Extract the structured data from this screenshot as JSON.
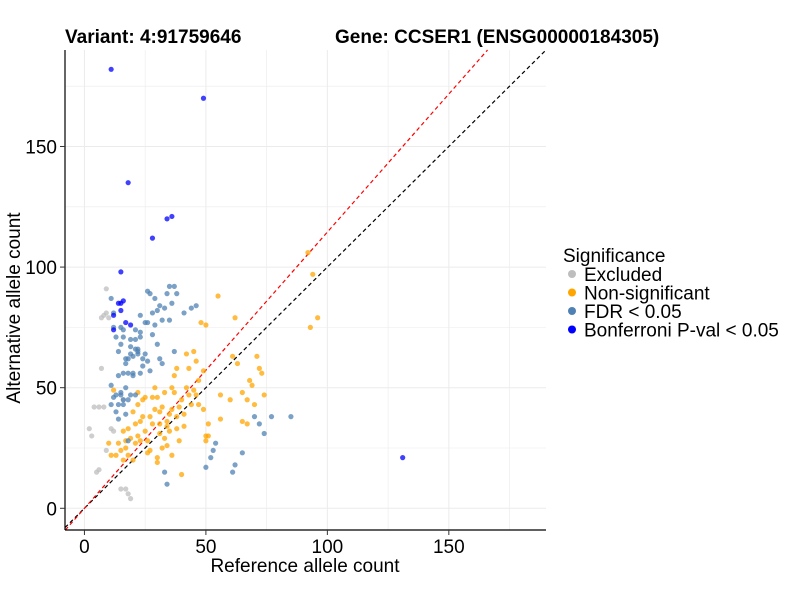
{
  "chart_data": {
    "type": "scatter",
    "title_left": "Variant: 4:91759646",
    "title_right": "Gene: CCSER1 (ENSG00000184305)",
    "xlabel": "Reference allele count",
    "ylabel": "Alternative allele count",
    "xlim": [
      -8,
      190
    ],
    "ylim": [
      -9,
      190
    ],
    "xticks": [
      0,
      50,
      100,
      150
    ],
    "yticks": [
      0,
      50,
      100,
      150
    ],
    "grid": true,
    "legend_position": "right",
    "legend_title": "Significance",
    "reference_lines": [
      {
        "name": "y = x",
        "slope": 1.0,
        "color": "#000000",
        "dash": true
      },
      {
        "name": "alt-ratio",
        "slope": 1.145,
        "color": "#ff0000",
        "dash": true
      }
    ],
    "series": [
      {
        "name": "Excluded",
        "color": "#bebebe",
        "points": [
          [
            2,
            33
          ],
          [
            3,
            30
          ],
          [
            4,
            42
          ],
          [
            5,
            15
          ],
          [
            6,
            16
          ],
          [
            6,
            42
          ],
          [
            7,
            79
          ],
          [
            8,
            80
          ],
          [
            7,
            58
          ],
          [
            8,
            42
          ],
          [
            9,
            91
          ],
          [
            9,
            24
          ],
          [
            9,
            81
          ],
          [
            10,
            79
          ],
          [
            11,
            33
          ],
          [
            12,
            32
          ],
          [
            15,
            8
          ],
          [
            16,
            45
          ],
          [
            17,
            8
          ],
          [
            18,
            6
          ],
          [
            19,
            4
          ]
        ]
      },
      {
        "name": "Non-significant",
        "color": "#ffa500",
        "points": [
          [
            10,
            27
          ],
          [
            11,
            22
          ],
          [
            12,
            49
          ],
          [
            13,
            22
          ],
          [
            14,
            27
          ],
          [
            15,
            24
          ],
          [
            16,
            20
          ],
          [
            16,
            32
          ],
          [
            17,
            28
          ],
          [
            17,
            25
          ],
          [
            18,
            22
          ],
          [
            18,
            33
          ],
          [
            19,
            29
          ],
          [
            20,
            20
          ],
          [
            20,
            40
          ],
          [
            21,
            27
          ],
          [
            21,
            35
          ],
          [
            22,
            43
          ],
          [
            22,
            48
          ],
          [
            22,
            30
          ],
          [
            23,
            28
          ],
          [
            23,
            36
          ],
          [
            24,
            45
          ],
          [
            24,
            38
          ],
          [
            25,
            46
          ],
          [
            25,
            32
          ],
          [
            26,
            23
          ],
          [
            26,
            28
          ],
          [
            27,
            38
          ],
          [
            27,
            24
          ],
          [
            28,
            46
          ],
          [
            28,
            35
          ],
          [
            29,
            50
          ],
          [
            29,
            41
          ],
          [
            30,
            46
          ],
          [
            30,
            21
          ],
          [
            30,
            19
          ],
          [
            31,
            31
          ],
          [
            31,
            35
          ],
          [
            31,
            40
          ],
          [
            32,
            42
          ],
          [
            32,
            25
          ],
          [
            33,
            29
          ],
          [
            33,
            48
          ],
          [
            34,
            26
          ],
          [
            34,
            34
          ],
          [
            34,
            36
          ],
          [
            35,
            39
          ],
          [
            35,
            32
          ],
          [
            36,
            50
          ],
          [
            36,
            41
          ],
          [
            36,
            22
          ],
          [
            37,
            55
          ],
          [
            37,
            48
          ],
          [
            38,
            58
          ],
          [
            38,
            38
          ],
          [
            38,
            33
          ],
          [
            39,
            42
          ],
          [
            39,
            28
          ],
          [
            40,
            14
          ],
          [
            40,
            45
          ],
          [
            41,
            34
          ],
          [
            41,
            39
          ],
          [
            42,
            50
          ],
          [
            42,
            64
          ],
          [
            43,
            47
          ],
          [
            43,
            58
          ],
          [
            44,
            43
          ],
          [
            45,
            65
          ],
          [
            45,
            49
          ],
          [
            46,
            61
          ],
          [
            46,
            47
          ],
          [
            47,
            53
          ],
          [
            47,
            43
          ],
          [
            48,
            77
          ],
          [
            49,
            57
          ],
          [
            49,
            41
          ],
          [
            50,
            76
          ],
          [
            50,
            28
          ],
          [
            50,
            30
          ],
          [
            51,
            30
          ],
          [
            51,
            35
          ],
          [
            55,
            88
          ],
          [
            56,
            47
          ],
          [
            56,
            37
          ],
          [
            60,
            45
          ],
          [
            61,
            63
          ],
          [
            62,
            79
          ],
          [
            63,
            60
          ],
          [
            65,
            48
          ],
          [
            65,
            36
          ],
          [
            67,
            35
          ],
          [
            67,
            45
          ],
          [
            68,
            53
          ],
          [
            69,
            51
          ],
          [
            70,
            43
          ],
          [
            71,
            63
          ],
          [
            72,
            58
          ],
          [
            73,
            56
          ],
          [
            74,
            47
          ],
          [
            93,
            75
          ],
          [
            94,
            97
          ],
          [
            96,
            79
          ],
          [
            92,
            106
          ]
        ]
      },
      {
        "name": "FDR < 0.05",
        "color": "#4f81b4",
        "points": [
          [
            11,
            51
          ],
          [
            11,
            87
          ],
          [
            11,
            43
          ],
          [
            12,
            81
          ],
          [
            12,
            75
          ],
          [
            12,
            46
          ],
          [
            13,
            71
          ],
          [
            13,
            47
          ],
          [
            13,
            40
          ],
          [
            14,
            65
          ],
          [
            14,
            55
          ],
          [
            14,
            43
          ],
          [
            14,
            37
          ],
          [
            15,
            75
          ],
          [
            15,
            68
          ],
          [
            15,
            47
          ],
          [
            15,
            48
          ],
          [
            16,
            74
          ],
          [
            16,
            71
          ],
          [
            16,
            56
          ],
          [
            16,
            45
          ],
          [
            16,
            43
          ],
          [
            17,
            60
          ],
          [
            17,
            62
          ],
          [
            17,
            50
          ],
          [
            17,
            39
          ],
          [
            18,
            62
          ],
          [
            18,
            56
          ],
          [
            18,
            45
          ],
          [
            18,
            28
          ],
          [
            19,
            70
          ],
          [
            19,
            67
          ],
          [
            19,
            64
          ],
          [
            19,
            47
          ],
          [
            20,
            63
          ],
          [
            20,
            56
          ],
          [
            20,
            55
          ],
          [
            21,
            70
          ],
          [
            21,
            74
          ],
          [
            21,
            66
          ],
          [
            21,
            47
          ],
          [
            22,
            66
          ],
          [
            22,
            65
          ],
          [
            22,
            64
          ],
          [
            23,
            71
          ],
          [
            23,
            80
          ],
          [
            23,
            73
          ],
          [
            23,
            56
          ],
          [
            24,
            62
          ],
          [
            24,
            59
          ],
          [
            25,
            77
          ],
          [
            25,
            64
          ],
          [
            26,
            90
          ],
          [
            26,
            77
          ],
          [
            26,
            61
          ],
          [
            27,
            89
          ],
          [
            27,
            57
          ],
          [
            28,
            72
          ],
          [
            28,
            81
          ],
          [
            29,
            76
          ],
          [
            29,
            87
          ],
          [
            30,
            82
          ],
          [
            30,
            68
          ],
          [
            31,
            84
          ],
          [
            31,
            62
          ],
          [
            32,
            78
          ],
          [
            32,
            60
          ],
          [
            33,
            83
          ],
          [
            33,
            15
          ],
          [
            34,
            89
          ],
          [
            34,
            10
          ],
          [
            35,
            92
          ],
          [
            35,
            78
          ],
          [
            36,
            85
          ],
          [
            37,
            92
          ],
          [
            37,
            65
          ],
          [
            38,
            89
          ],
          [
            41,
            81
          ],
          [
            44,
            83
          ],
          [
            46,
            84
          ],
          [
            50,
            17
          ],
          [
            52,
            21
          ],
          [
            53,
            24
          ],
          [
            54,
            27
          ],
          [
            61,
            15
          ],
          [
            62,
            18
          ],
          [
            65,
            23
          ],
          [
            70,
            38
          ],
          [
            72,
            35
          ],
          [
            74,
            31
          ],
          [
            77,
            38
          ],
          [
            85,
            38
          ]
        ]
      },
      {
        "name": "Bonferroni P-val < 0.05",
        "color": "#0000ff",
        "points": [
          [
            11,
            182
          ],
          [
            49,
            170
          ],
          [
            18,
            135
          ],
          [
            34,
            120
          ],
          [
            36,
            121
          ],
          [
            28,
            112
          ],
          [
            15,
            98
          ],
          [
            16,
            86
          ],
          [
            15,
            85
          ],
          [
            15,
            82
          ],
          [
            14,
            85
          ],
          [
            12,
            80
          ],
          [
            19,
            76
          ],
          [
            17,
            77
          ],
          [
            12,
            74
          ],
          [
            131,
            21
          ]
        ]
      }
    ]
  }
}
